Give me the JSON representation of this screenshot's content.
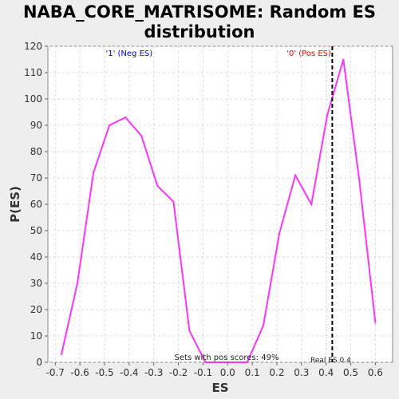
{
  "chart_data": {
    "type": "line",
    "title_lines": [
      "NABA_CORE_MATRISOME: Random ES",
      "distribution"
    ],
    "xlabel": "ES",
    "ylabel": "P(ES)",
    "xlim": [
      -0.73,
      0.67
    ],
    "ylim": [
      0,
      120
    ],
    "x_ticks": [
      -0.7,
      -0.6,
      -0.5,
      -0.4,
      -0.3,
      -0.2,
      -0.1,
      0.0,
      0.1,
      0.2,
      0.3,
      0.4,
      0.5,
      0.6
    ],
    "y_ticks": [
      0,
      10,
      20,
      30,
      40,
      50,
      60,
      70,
      80,
      90,
      100,
      110,
      120
    ],
    "grid": true,
    "series": [
      {
        "color": "#ff33ff",
        "x": [
          -0.675,
          -0.61,
          -0.545,
          -0.48,
          -0.415,
          -0.35,
          -0.285,
          -0.22,
          -0.155,
          -0.09,
          -0.025,
          0.04,
          0.08,
          0.145,
          0.21,
          0.275,
          0.34,
          0.405,
          0.47,
          0.535,
          0.6
        ],
        "y": [
          3,
          30,
          72,
          90,
          93,
          86,
          67,
          61,
          12,
          0,
          0,
          0,
          0,
          14,
          49,
          71,
          60,
          94,
          115,
          69,
          15
        ]
      }
    ],
    "reference_line": {
      "x": 0.425,
      "color": "#000000",
      "label": "Real ES 0.4"
    },
    "annotations": {
      "neg": {
        "text": "'1' (Neg ES)",
        "color": "#0000ff"
      },
      "pos": {
        "text": "'0' (Pos ES)",
        "color": "#ff0000"
      },
      "pos_scores": "Sets with pos scores: 49%"
    }
  }
}
